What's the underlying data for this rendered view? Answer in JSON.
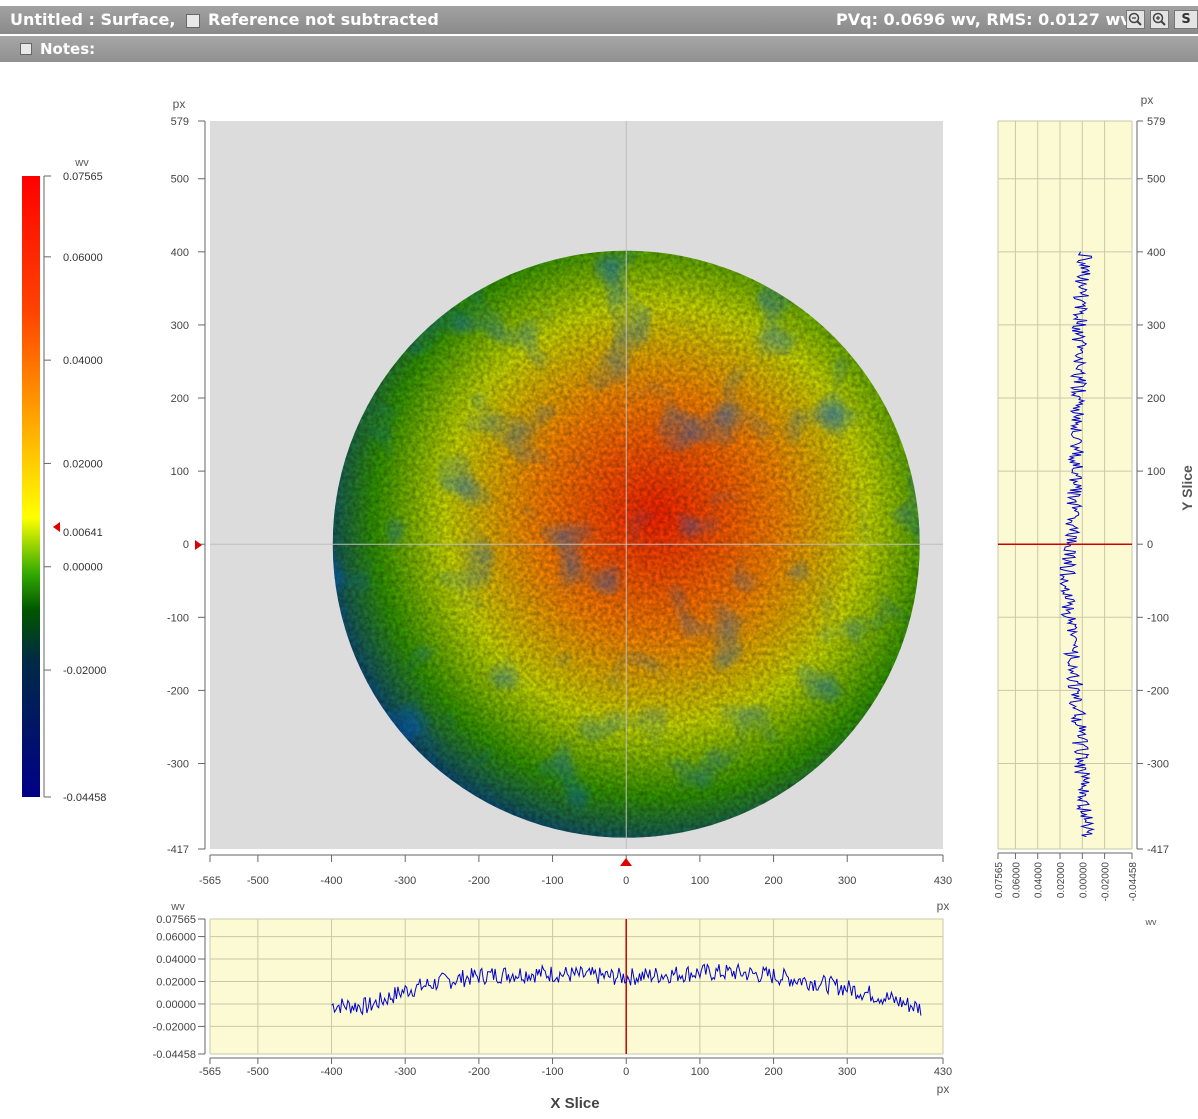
{
  "window": {
    "title": "Untitled : Surface,",
    "reference_label": "Reference not subtracted",
    "stats": "PVq: 0.0696 wv, RMS: 0.0127 wv",
    "zoom_out_icon": "zoom-out-icon",
    "zoom_in_icon": "zoom-in-icon",
    "cut_button_label": "S"
  },
  "notes": {
    "label": "Notes:"
  },
  "colorbar": {
    "unit": "wv",
    "ticks": [
      "0.07565",
      "0.06000",
      "0.04000",
      "0.02000",
      "0.00000",
      "-0.02000",
      "-0.04458"
    ],
    "marker_value": "0.00641",
    "colors": [
      "#ff0000",
      "#ff8800",
      "#ffff00",
      "#66cc00",
      "#006600",
      "#003333",
      "#000099"
    ]
  },
  "surface_map": {
    "x_unit": "px",
    "y_unit": "px",
    "x_ticks": [
      "-565",
      "-500",
      "-400",
      "-300",
      "-200",
      "-100",
      "0",
      "100",
      "200",
      "300",
      "430"
    ],
    "y_ticks": [
      "579",
      "500",
      "400",
      "300",
      "200",
      "100",
      "0",
      "-100",
      "-200",
      "-300",
      "-417"
    ],
    "x_range": [
      -565,
      430
    ],
    "y_range": [
      -417,
      579
    ],
    "aperture_radius_px": 400,
    "crosshair": [
      0,
      0
    ]
  },
  "x_slice": {
    "title": "X Slice",
    "y_unit": "wv",
    "x_unit": "px",
    "y_ticks": [
      "0.07565",
      "0.06000",
      "0.04000",
      "0.02000",
      "0.00000",
      "-0.02000",
      "-0.04458"
    ],
    "x_ticks": [
      "-565",
      "-500",
      "-400",
      "-300",
      "-200",
      "-100",
      "0",
      "100",
      "200",
      "300",
      "430"
    ]
  },
  "y_slice": {
    "title": "Y Slice",
    "y_unit": "px",
    "value_unit": "wv",
    "y_ticks": [
      "579",
      "500",
      "400",
      "300",
      "200",
      "100",
      "0",
      "-100",
      "-200",
      "-300",
      "-417"
    ],
    "value_ticks": [
      "0.07565",
      "0.06000",
      "0.04000",
      "0.02000",
      "0.00000",
      "-0.02000",
      "-0.04458"
    ]
  },
  "chart_data": [
    {
      "type": "heatmap",
      "title": "",
      "xlabel": "px",
      "ylabel": "px",
      "xlim": [
        -565,
        430
      ],
      "ylim": [
        -417,
        579
      ],
      "colorbar_range": [
        -0.04458,
        0.07565
      ],
      "colorbar_unit": "wv"
    },
    {
      "type": "line",
      "title": "X Slice",
      "xlabel": "px",
      "ylabel": "wv",
      "xlim": [
        -565,
        430
      ],
      "ylim": [
        -0.04458,
        0.07565
      ],
      "x": [
        -400,
        -350,
        -300,
        -250,
        -200,
        -150,
        -100,
        -50,
        0,
        50,
        100,
        150,
        200,
        250,
        300,
        350,
        400
      ],
      "y": [
        -0.001,
        -0.002,
        0.012,
        0.02,
        0.025,
        0.027,
        0.027,
        0.025,
        0.024,
        0.026,
        0.028,
        0.028,
        0.025,
        0.02,
        0.014,
        0.006,
        -0.004
      ]
    },
    {
      "type": "line",
      "title": "Y Slice",
      "xlabel": "wv",
      "ylabel": "px",
      "xlim": [
        0.07565,
        -0.04458
      ],
      "ylim": [
        -417,
        579
      ],
      "x": [
        -0.003,
        -0.002,
        0.001,
        0.003,
        0.006,
        0.009,
        0.012,
        0.014,
        0.011,
        0.008,
        0.005,
        0.006,
        0.003,
        0.004,
        0.002,
        0.001,
        -0.003
      ],
      "y": [
        -400,
        -350,
        -300,
        -250,
        -200,
        -150,
        -100,
        -50,
        0,
        50,
        100,
        150,
        200,
        250,
        300,
        350,
        400
      ]
    }
  ]
}
